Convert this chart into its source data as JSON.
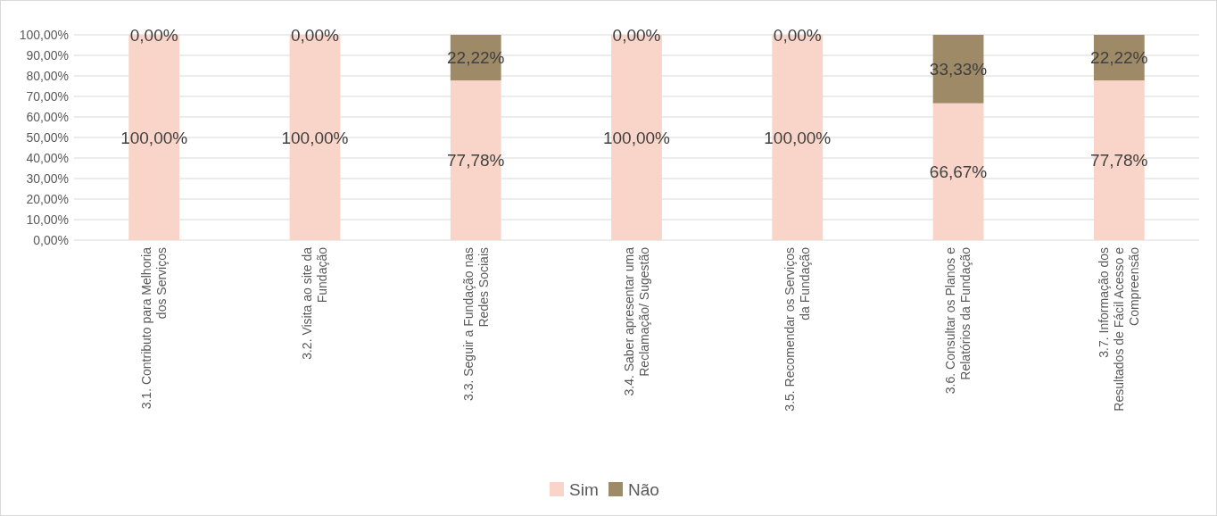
{
  "chart_data": {
    "type": "bar",
    "stacked": true,
    "categories": [
      "3.1. Contributo para Melhoria dos Serviços",
      "3.2. Visita ao site da Fundação",
      "3.3. Seguir a Fundação nas Redes Sociais",
      "3.4. Saber apresentar uma Reclamação/ Sugestão",
      "3.5. Recomendar os Serviços da Fundação",
      "3.6. Consultar os Planos e Relatórios da Fundação",
      "3.7. Informação dos Resultados de Fácil Acesso e Compreensão"
    ],
    "series": [
      {
        "name": "Sim",
        "color": "#f8d5c8",
        "values": [
          100,
          100,
          77.78,
          100,
          100,
          66.67,
          77.78
        ],
        "value_labels": [
          "100,00%",
          "100,00%",
          "77,78%",
          "100,00%",
          "100,00%",
          "66,67%",
          "77,78%"
        ]
      },
      {
        "name": "Não",
        "color": "#9e8a67",
        "values": [
          0,
          0,
          22.22,
          0,
          0,
          33.33,
          22.22
        ],
        "value_labels": [
          "0,00%",
          "0,00%",
          "22,22%",
          "0,00%",
          "0,00%",
          "33,33%",
          "22,22%"
        ]
      }
    ],
    "ylim": [
      0,
      100
    ],
    "yticks": [
      {
        "value": 0,
        "label": "0,00%"
      },
      {
        "value": 10,
        "label": "10,00%"
      },
      {
        "value": 20,
        "label": "20,00%"
      },
      {
        "value": 30,
        "label": "30,00%"
      },
      {
        "value": 40,
        "label": "40,00%"
      },
      {
        "value": 50,
        "label": "50,00%"
      },
      {
        "value": 60,
        "label": "60,00%"
      },
      {
        "value": 70,
        "label": "70,00%"
      },
      {
        "value": 80,
        "label": "80,00%"
      },
      {
        "value": 90,
        "label": "90,00%"
      },
      {
        "value": 100,
        "label": "100,00%"
      }
    ],
    "grid": "y",
    "legend": "bottom"
  }
}
